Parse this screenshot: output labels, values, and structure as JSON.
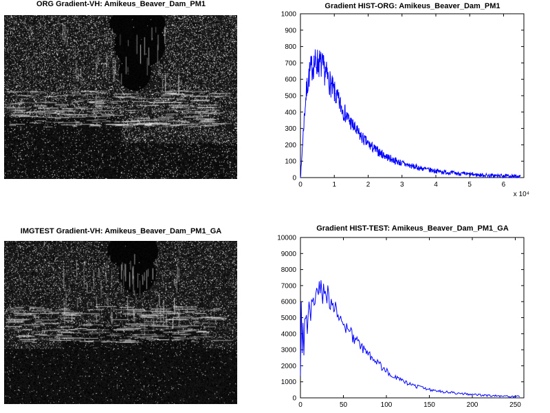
{
  "figure": {
    "background": "#ffffff"
  },
  "panels": {
    "org_image": {
      "title": "ORG Gradient-VH: Amikeus_Beaver_Dam_PM1"
    },
    "test_image": {
      "title": "IMGTEST Gradient-VH: Amikeus_Beaver_Dam_PM1_GA"
    }
  },
  "chart_data": [
    {
      "id": "hist_org",
      "type": "line",
      "title": "Gradient HIST-ORG: Amikeus_Beaver_Dam_PM1",
      "xlabel": "",
      "ylabel": "",
      "line_color": "#0000ff",
      "xlim": [
        0,
        6.6
      ],
      "ylim": [
        0,
        1000
      ],
      "xticks": [
        0,
        1,
        2,
        3,
        4,
        5,
        6
      ],
      "yticks": [
        0,
        100,
        200,
        300,
        400,
        500,
        600,
        700,
        800,
        900,
        1000
      ],
      "x_scale_label": "x 10⁴",
      "x_unit": 10000,
      "grid": false,
      "legend": null,
      "points": [
        [
          0,
          5
        ],
        [
          0.03,
          80
        ],
        [
          0.06,
          200
        ],
        [
          0.1,
          330
        ],
        [
          0.15,
          470
        ],
        [
          0.2,
          560
        ],
        [
          0.25,
          620
        ],
        [
          0.3,
          655
        ],
        [
          0.35,
          680
        ],
        [
          0.4,
          695
        ],
        [
          0.45,
          700
        ],
        [
          0.5,
          703
        ],
        [
          0.55,
          700
        ],
        [
          0.6,
          690
        ],
        [
          0.65,
          675
        ],
        [
          0.7,
          655
        ],
        [
          0.75,
          635
        ],
        [
          0.8,
          612
        ],
        [
          0.85,
          590
        ],
        [
          0.9,
          565
        ],
        [
          0.95,
          542
        ],
        [
          1.0,
          520
        ],
        [
          1.1,
          475
        ],
        [
          1.2,
          435
        ],
        [
          1.3,
          398
        ],
        [
          1.4,
          362
        ],
        [
          1.5,
          330
        ],
        [
          1.6,
          300
        ],
        [
          1.7,
          272
        ],
        [
          1.8,
          248
        ],
        [
          1.9,
          226
        ],
        [
          2.0,
          205
        ],
        [
          2.2,
          172
        ],
        [
          2.4,
          145
        ],
        [
          2.6,
          122
        ],
        [
          2.8,
          103
        ],
        [
          3.0,
          88
        ],
        [
          3.2,
          75
        ],
        [
          3.4,
          64
        ],
        [
          3.6,
          55
        ],
        [
          3.8,
          47
        ],
        [
          4.0,
          41
        ],
        [
          4.2,
          35
        ],
        [
          4.4,
          30
        ],
        [
          4.6,
          26
        ],
        [
          4.8,
          23
        ],
        [
          5.0,
          20
        ],
        [
          5.2,
          17
        ],
        [
          5.4,
          15
        ],
        [
          5.6,
          13
        ],
        [
          5.8,
          11
        ],
        [
          6.0,
          10
        ],
        [
          6.2,
          8
        ],
        [
          6.4,
          7
        ],
        [
          6.5,
          6
        ]
      ],
      "noise": {
        "base": 10,
        "prop": 0.12
      },
      "samples": 700
    },
    {
      "id": "hist_test",
      "type": "line",
      "title": "Gradient HIST-TEST: Amikeus_Beaver_Dam_PM1_GA",
      "xlabel": "",
      "ylabel": "",
      "line_color": "#0000ff",
      "xlim": [
        0,
        260
      ],
      "ylim": [
        0,
        10000
      ],
      "xticks": [
        0,
        50,
        100,
        150,
        200,
        250
      ],
      "yticks": [
        0,
        1000,
        2000,
        3000,
        4000,
        5000,
        6000,
        7000,
        8000,
        9000,
        10000
      ],
      "x_scale_label": null,
      "x_unit": 1,
      "grid": false,
      "legend": null,
      "points": [
        [
          0,
          1500
        ],
        [
          1,
          5600
        ],
        [
          2,
          3000
        ],
        [
          3,
          4400
        ],
        [
          4,
          2500
        ],
        [
          5,
          4800
        ],
        [
          6,
          5200
        ],
        [
          8,
          4300
        ],
        [
          10,
          5800
        ],
        [
          12,
          5000
        ],
        [
          14,
          6300
        ],
        [
          16,
          5600
        ],
        [
          18,
          6500
        ],
        [
          20,
          6200
        ],
        [
          22,
          6800
        ],
        [
          24,
          7100
        ],
        [
          26,
          6400
        ],
        [
          28,
          6900
        ],
        [
          30,
          6300
        ],
        [
          32,
          6600
        ],
        [
          34,
          5900
        ],
        [
          36,
          6200
        ],
        [
          38,
          5700
        ],
        [
          40,
          5400
        ],
        [
          42,
          5600
        ],
        [
          44,
          5100
        ],
        [
          46,
          4900
        ],
        [
          48,
          4700
        ],
        [
          50,
          4500
        ],
        [
          55,
          4200
        ],
        [
          60,
          3900
        ],
        [
          65,
          3500
        ],
        [
          70,
          3200
        ],
        [
          75,
          2900
        ],
        [
          80,
          2700
        ],
        [
          85,
          2400
        ],
        [
          90,
          2200
        ],
        [
          95,
          1900
        ],
        [
          100,
          1700
        ],
        [
          105,
          1500
        ],
        [
          110,
          1300
        ],
        [
          115,
          1150
        ],
        [
          120,
          1000
        ],
        [
          125,
          900
        ],
        [
          130,
          800
        ],
        [
          135,
          720
        ],
        [
          140,
          650
        ],
        [
          145,
          580
        ],
        [
          150,
          520
        ],
        [
          160,
          430
        ],
        [
          170,
          360
        ],
        [
          180,
          300
        ],
        [
          190,
          250
        ],
        [
          200,
          210
        ],
        [
          210,
          170
        ],
        [
          220,
          140
        ],
        [
          230,
          115
        ],
        [
          240,
          95
        ],
        [
          250,
          80
        ],
        [
          255,
          70
        ]
      ],
      "noise": {
        "base": 50,
        "prop": 0.09
      },
      "samples": 256
    }
  ]
}
